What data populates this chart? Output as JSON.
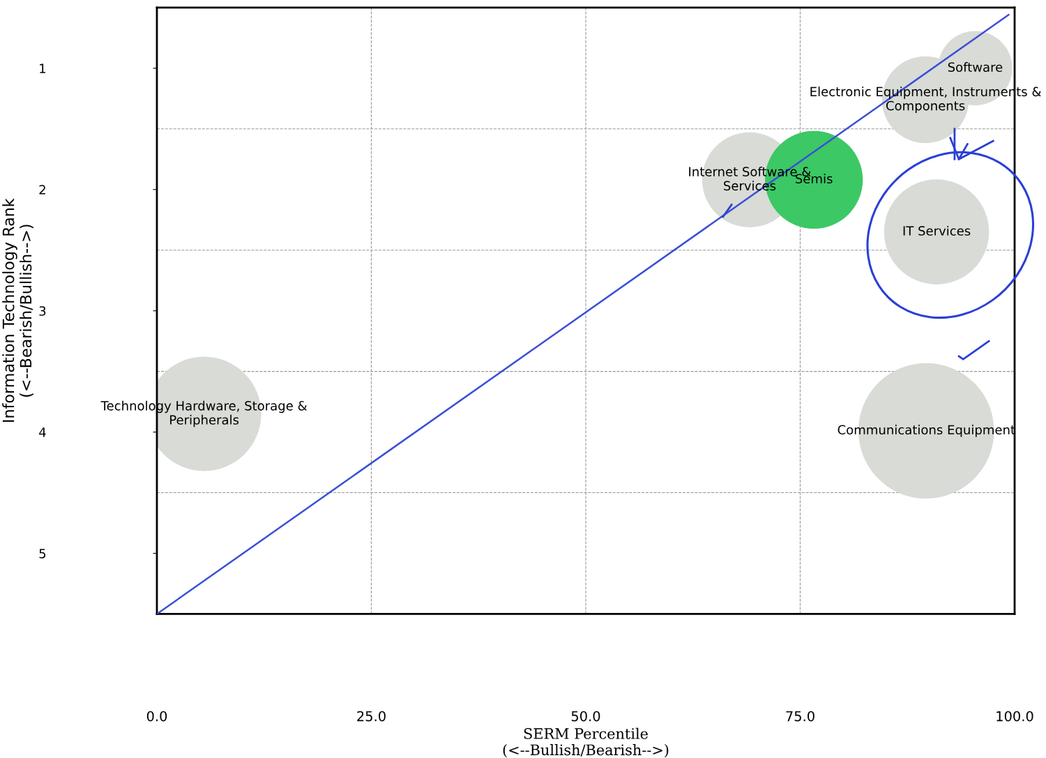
{
  "chart_data": {
    "type": "bubble",
    "xlabel": "SERM Percentile\n(<--Bullish/Bearish-->)",
    "ylabel": "Information Technology Rank\n(<--Bearish/Bullish-->)",
    "xlim": [
      0,
      100
    ],
    "xticks": [
      {
        "value": 0,
        "label": "0.0"
      },
      {
        "value": 25,
        "label": "25.0"
      },
      {
        "value": 50,
        "label": "50.0"
      },
      {
        "value": 75,
        "label": "75.0"
      },
      {
        "value": 100,
        "label": "100.0"
      }
    ],
    "ylim": [
      5.5,
      0.5
    ],
    "yticks": [
      1,
      2,
      3,
      4,
      5
    ],
    "grid": "x",
    "ref_lines": [
      {
        "axis": "y",
        "value": 1.5,
        "color": "#999999",
        "line_style": "dashed"
      },
      {
        "axis": "y",
        "value": 2.5,
        "color": "#999999",
        "line_style": "dashed"
      },
      {
        "axis": "y",
        "value": 3.5,
        "color": "#999999",
        "line_style": "dashed"
      },
      {
        "axis": "y",
        "value": 4.5,
        "color": "#999999",
        "line_style": "dashed"
      }
    ],
    "series": [
      {
        "name": "Software",
        "color": "#d9dbd6",
        "x": [
          95.4
        ],
        "values": [
          1.0
        ],
        "sizes": [
          0.3
        ]
      },
      {
        "name": "Electronic Equipment, Instruments &\nComponents",
        "color": "#d9dbd6",
        "x": [
          89.6
        ],
        "values": [
          1.26
        ],
        "sizes": [
          0.41
        ]
      },
      {
        "name": "Internet Software &\nServices",
        "color": "#d9dbd6",
        "x": [
          69.1
        ],
        "values": [
          1.92
        ],
        "sizes": [
          0.49
        ]
      },
      {
        "name": "Semis",
        "color": "#3cc864",
        "x": [
          76.6
        ],
        "values": [
          1.92
        ],
        "sizes": [
          0.52
        ]
      },
      {
        "name": "IT Services",
        "color": "#d9dbd6",
        "x": [
          90.9
        ],
        "values": [
          2.35
        ],
        "sizes": [
          0.6
        ]
      },
      {
        "name": "Technology Hardware, Storage &\nPeripherals",
        "color": "#d9dbd6",
        "x": [
          5.5
        ],
        "values": [
          3.85
        ],
        "sizes": [
          0.71
        ]
      },
      {
        "name": "Communications Equipment",
        "color": "#d9dbd6",
        "x": [
          89.7
        ],
        "values": [
          3.99
        ],
        "sizes": [
          1
        ]
      },
      {
        "type": "line",
        "color": "#3a4fd6",
        "x": [
          0,
          99.3
        ],
        "values": [
          5.5,
          0.56
        ],
        "line_style": "solid"
      }
    ]
  }
}
